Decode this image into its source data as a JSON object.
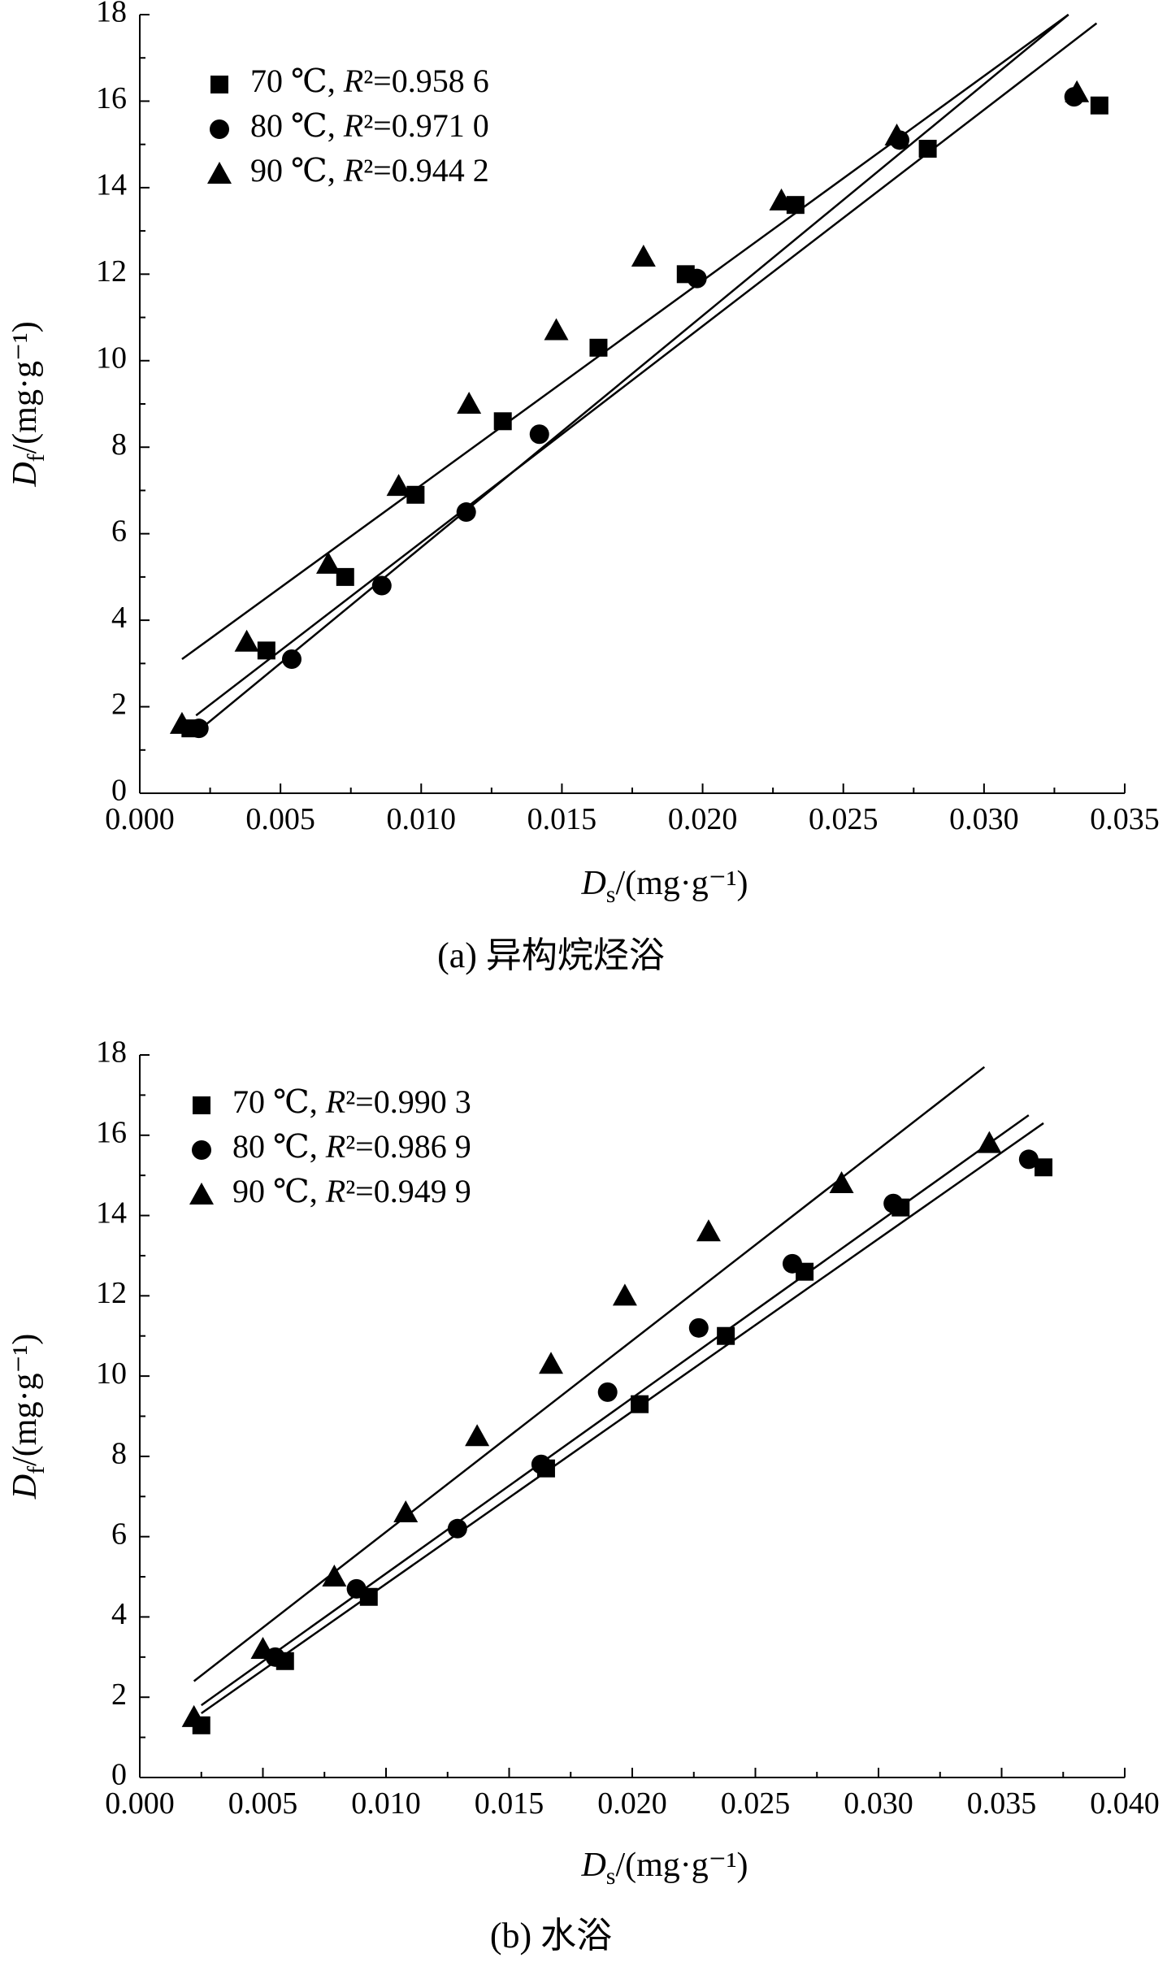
{
  "chart_data": [
    {
      "type": "scatter",
      "caption": "(a) 异构烷烃浴",
      "xlabel": "D_s/(mg·g⁻¹)",
      "ylabel": "D_f/(mg·g⁻¹)",
      "xlim": [
        0,
        0.035
      ],
      "ylim": [
        0,
        18
      ],
      "xticks": [
        "0.000",
        "0.005",
        "0.010",
        "0.015",
        "0.020",
        "0.025",
        "0.030",
        "0.035"
      ],
      "yticks": [
        "0",
        "2",
        "4",
        "6",
        "8",
        "10",
        "12",
        "14",
        "16",
        "18"
      ],
      "legend_position": "top-left",
      "series": [
        {
          "name": "70 ℃, R²=0.958 6",
          "marker": "square",
          "x": [
            0.0018,
            0.0045,
            0.0073,
            0.0098,
            0.0129,
            0.0163,
            0.0194,
            0.0233,
            0.028,
            0.0341
          ],
          "y": [
            1.5,
            3.3,
            5.0,
            6.9,
            8.6,
            10.3,
            12.0,
            13.6,
            14.9,
            15.9
          ],
          "fit": {
            "x": [
              0.002,
              0.033
            ],
            "y": [
              1.4,
              18.0
            ]
          }
        },
        {
          "name": "80 ℃, R²=0.971 0",
          "marker": "circle",
          "x": [
            0.0021,
            0.0054,
            0.0086,
            0.0116,
            0.0142,
            0.0198,
            0.027,
            0.0332
          ],
          "y": [
            1.5,
            3.1,
            4.8,
            6.5,
            8.3,
            11.9,
            15.1,
            16.1
          ],
          "fit": {
            "x": [
              0.002,
              0.034
            ],
            "y": [
              1.8,
              17.8
            ]
          }
        },
        {
          "name": "90 ℃, R²=0.944 2",
          "marker": "triangle",
          "x": [
            0.0015,
            0.0038,
            0.0067,
            0.0092,
            0.0117,
            0.0148,
            0.0179,
            0.0228,
            0.0269,
            0.0333
          ],
          "y": [
            1.6,
            3.5,
            5.3,
            7.1,
            9.0,
            10.7,
            12.4,
            13.7,
            15.2,
            16.2
          ],
          "fit": {
            "x": [
              0.0015,
              0.033
            ],
            "y": [
              3.1,
              18.0
            ]
          }
        }
      ]
    },
    {
      "type": "scatter",
      "caption": "(b) 水浴",
      "xlabel": "D_s/(mg·g⁻¹)",
      "ylabel": "D_f/(mg·g⁻¹)",
      "xlim": [
        0,
        0.04
      ],
      "ylim": [
        0,
        18
      ],
      "xticks": [
        "0.000",
        "0.005",
        "0.010",
        "0.015",
        "0.020",
        "0.025",
        "0.030",
        "0.035",
        "0.040"
      ],
      "yticks": [
        "0",
        "2",
        "4",
        "6",
        "8",
        "10",
        "12",
        "14",
        "16",
        "18"
      ],
      "legend_position": "top-left",
      "series": [
        {
          "name": "70 ℃, R²=0.990 3",
          "marker": "square",
          "x": [
            0.0025,
            0.0059,
            0.0093,
            0.0165,
            0.0203,
            0.0238,
            0.027,
            0.0309,
            0.0367
          ],
          "y": [
            1.3,
            2.9,
            4.5,
            7.7,
            9.3,
            11.0,
            12.6,
            14.2,
            15.2
          ],
          "fit": {
            "x": [
              0.0025,
              0.0367
            ],
            "y": [
              1.6,
              16.3
            ]
          }
        },
        {
          "name": "80 ℃, R²=0.986 9",
          "marker": "circle",
          "x": [
            0.0055,
            0.0088,
            0.0129,
            0.0163,
            0.019,
            0.0227,
            0.0265,
            0.0306,
            0.0361
          ],
          "y": [
            3.0,
            4.7,
            6.2,
            7.8,
            9.6,
            11.2,
            12.8,
            14.3,
            15.4
          ],
          "fit": {
            "x": [
              0.0025,
              0.0361
            ],
            "y": [
              1.8,
              16.5
            ]
          }
        },
        {
          "name": "90 ℃, R²=0.949 9",
          "marker": "triangle",
          "x": [
            0.0022,
            0.005,
            0.0079,
            0.0108,
            0.0137,
            0.0167,
            0.0197,
            0.0231,
            0.0285,
            0.0345
          ],
          "y": [
            1.5,
            3.2,
            5.0,
            6.6,
            8.5,
            10.3,
            12.0,
            13.6,
            14.8,
            15.8
          ],
          "fit": {
            "x": [
              0.0022,
              0.0343
            ],
            "y": [
              2.4,
              17.7
            ]
          }
        }
      ]
    }
  ]
}
